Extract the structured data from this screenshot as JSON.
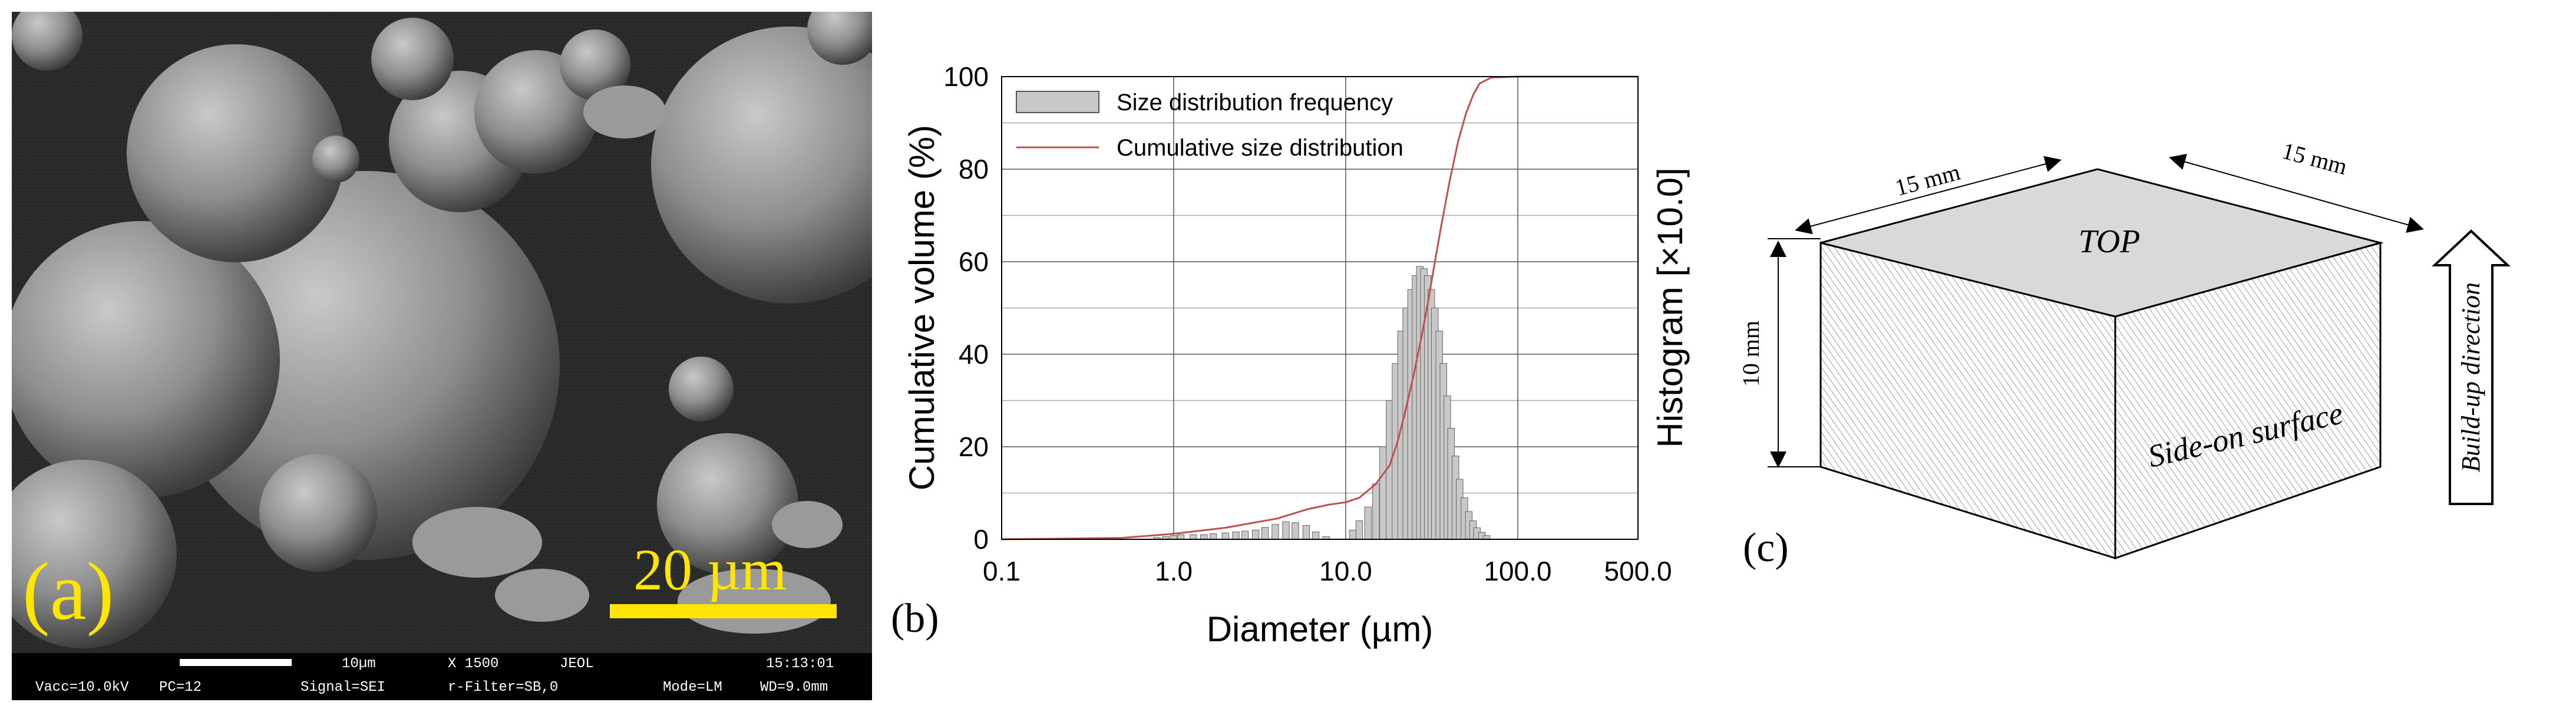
{
  "panel_a": {
    "label": "(a)",
    "scale_label": "20 µm",
    "sem_bar_label": "10µm",
    "info_row1": [
      "10µm",
      "X 1500",
      "JEOL",
      "15:13:01"
    ],
    "info_row2": [
      "Vacc=10.0kV",
      "PC=12",
      "Signal=SEI",
      "r-Filter=SB,0",
      "Mode=LM",
      "WD=9.0mm"
    ],
    "colors": {
      "background": "#262626",
      "particle": "#8a8a8a",
      "label": "#ffe600",
      "info_bar": "#000000",
      "info_text": "#ffffff"
    }
  },
  "panel_b": {
    "label": "(b)"
  },
  "panel_c": {
    "label": "(c)",
    "top_label": "TOP",
    "side_label": "Side-on surface",
    "arrow_label": "Build-up direction",
    "dim_left": "15 mm",
    "dim_right": "15 mm",
    "dim_height": "10 mm",
    "colors": {
      "top_face": "#d9d9d9",
      "hatch": "#9a9a9a",
      "outline": "#000000"
    }
  },
  "chart_data": {
    "type": "bar",
    "xscale": "log",
    "xlim": [
      0.1,
      500.0
    ],
    "ylim": [
      0,
      100
    ],
    "xticks": [
      "0.1",
      "1.0",
      "10.0",
      "100.0",
      "500.0"
    ],
    "yticks": [
      "0",
      "20",
      "40",
      "60",
      "80",
      "100"
    ],
    "xlabel": "Diameter (µm)",
    "ylabel": "Cumulative volume (%)",
    "ylabel_right": "Histogram  [×10.0]",
    "grid": true,
    "legend_position": "top-left",
    "series": [
      {
        "name": "Size distribution frequency",
        "kind": "bar",
        "color": "#c8c8c8",
        "x": [
          0.8,
          0.9,
          1.0,
          1.1,
          1.3,
          1.5,
          1.7,
          2.0,
          2.3,
          2.6,
          3.0,
          3.4,
          3.9,
          4.5,
          5.1,
          5.9,
          6.7,
          7.7,
          11.0,
          12.0,
          13.5,
          15.0,
          16.5,
          18.0,
          19.5,
          21.0,
          22.5,
          24.0,
          25.5,
          27.0,
          28.5,
          30.0,
          31.5,
          33.0,
          35.0,
          37.0,
          39.0,
          41.0,
          43.5,
          46.0,
          49.0,
          52.0,
          55.0,
          58.0,
          62.0,
          66.0
        ],
        "values": [
          0.4,
          0.6,
          0.8,
          1.0,
          1.0,
          1.0,
          1.2,
          1.4,
          1.6,
          1.8,
          2.0,
          2.6,
          3.2,
          3.8,
          3.6,
          3.0,
          1.6,
          0.6,
          2.0,
          4.0,
          7.0,
          12.0,
          20.0,
          30.0,
          38.0,
          45.0,
          50.0,
          54.0,
          57.0,
          59.0,
          58.5,
          57.0,
          54.0,
          50.0,
          45.0,
          38.0,
          31.0,
          24.0,
          18.0,
          13.0,
          9.0,
          6.0,
          4.0,
          2.5,
          1.5,
          0.8
        ]
      },
      {
        "name": "Cumulative size distribution",
        "kind": "line",
        "color": "#c0504d",
        "x": [
          0.1,
          0.5,
          1.0,
          2.0,
          4.0,
          6.0,
          8.0,
          10.0,
          12.0,
          15.0,
          18.0,
          20.0,
          22.0,
          25.0,
          28.0,
          30.0,
          33.0,
          36.0,
          40.0,
          45.0,
          50.0,
          55.0,
          60.0,
          70.0,
          100.0,
          500.0
        ],
        "values": [
          0,
          0.3,
          1.2,
          2.5,
          4.5,
          6.5,
          7.5,
          8.0,
          9.0,
          12.0,
          16.0,
          21.0,
          27.0,
          36.0,
          45.0,
          51.0,
          60.0,
          68.0,
          77.0,
          86.0,
          92.0,
          96.0,
          98.5,
          99.8,
          100.0,
          100.0
        ]
      }
    ]
  }
}
